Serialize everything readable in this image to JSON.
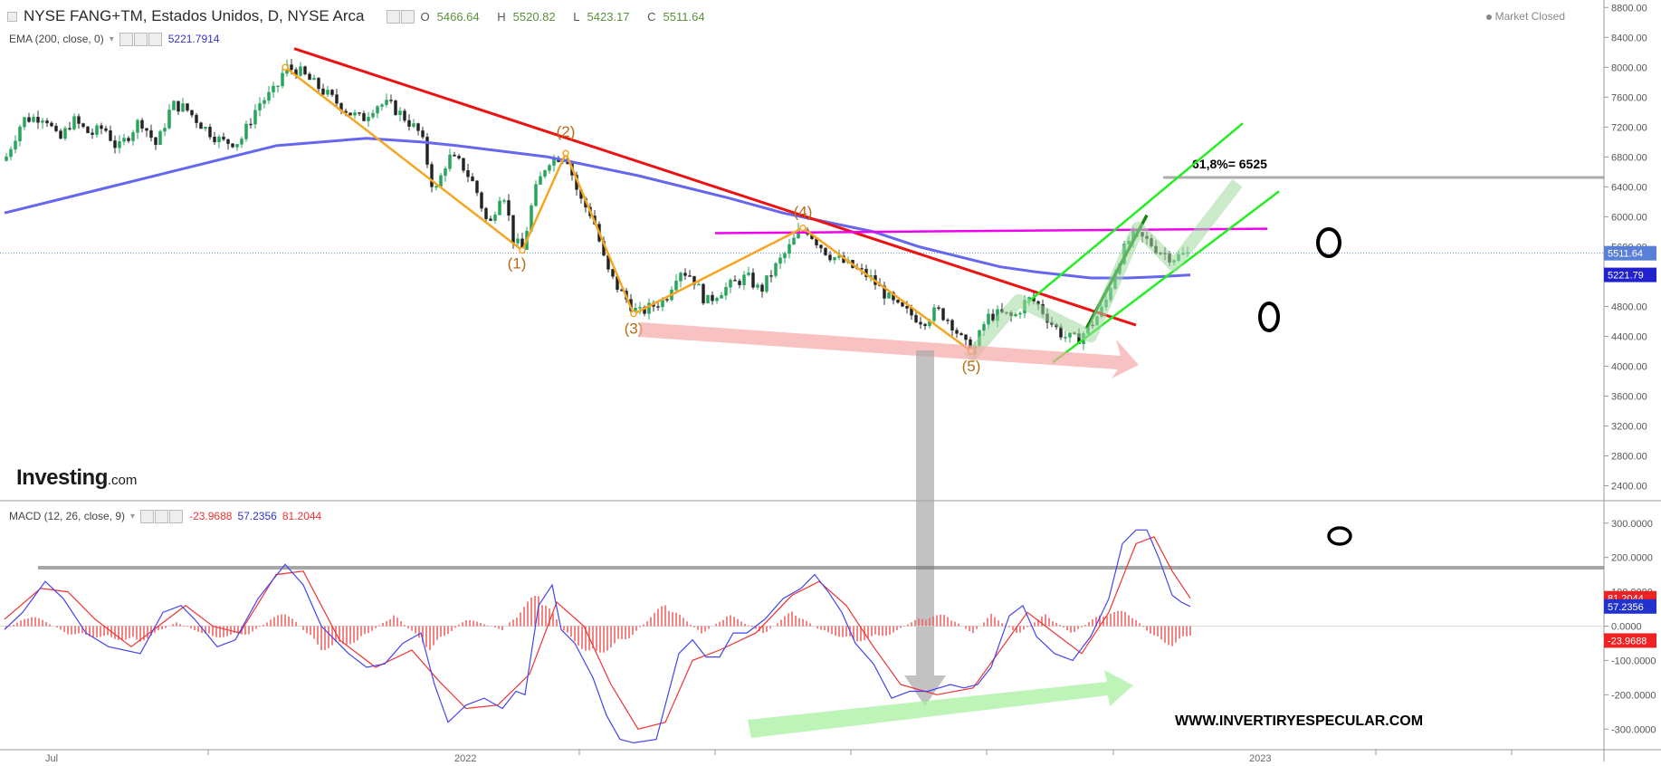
{
  "header": {
    "title": "NYSE FANG+TM, Estados Unidos, D, NYSE Arca",
    "ohlc": [
      {
        "label": "O",
        "value": "5466.64"
      },
      {
        "label": "H",
        "value": "5520.82"
      },
      {
        "label": "L",
        "value": "5423.17"
      },
      {
        "label": "C",
        "value": "5511.64"
      }
    ],
    "market_status": "Market Closed",
    "ema_label": "EMA (200, close, 0)",
    "ema_value": "5221.7914",
    "macd_label": "MACD (12, 26, close, 9)",
    "macd_values": [
      "-23.9688",
      "57.2356",
      "81.2044"
    ]
  },
  "brand": {
    "name": "Investing",
    "suffix": ".com"
  },
  "website": "WWW.INVERTIRYESPECULAR.COM",
  "colors": {
    "up": "#26a65b",
    "down": "#333333",
    "ema": "#6666ee",
    "trend": "#ee1111",
    "wave": "#f5a623",
    "magenta": "#ee00ee",
    "channel": "#22ee22",
    "macd": "#4444ee",
    "signal": "#ee3333",
    "hist": "#ee6666",
    "level": "#777777"
  },
  "chart_data": [
    {
      "type": "candlestick",
      "title": "NYSE FANG+TM, Estados Unidos, D, NYSE Arca",
      "ylim": [
        2200,
        8900
      ],
      "yticks": [
        "8800.00",
        "8400.00",
        "8000.00",
        "7600.00",
        "7200.00",
        "6800.00",
        "6400.00",
        "6000.00",
        "5600.00",
        "5200.00",
        "4800.00",
        "4400.00",
        "4000.00",
        "3600.00",
        "3200.00",
        "2800.00",
        "2400.00"
      ],
      "xticks": [
        "Jul",
        "2022",
        "2023"
      ],
      "last_price_label": "5511.64",
      "last_price": 5511.64,
      "ema_label": "5221.79",
      "ema_last": 5221.79,
      "price_path": [
        [
          0,
          6750
        ],
        [
          20,
          7300
        ],
        [
          45,
          7350
        ],
        [
          60,
          7000
        ],
        [
          75,
          7300
        ],
        [
          95,
          7100
        ],
        [
          110,
          7200
        ],
        [
          125,
          6900
        ],
        [
          150,
          7300
        ],
        [
          168,
          6950
        ],
        [
          185,
          7500
        ],
        [
          200,
          7450
        ],
        [
          220,
          7200
        ],
        [
          240,
          7000
        ],
        [
          260,
          7000
        ],
        [
          280,
          7500
        ],
        [
          300,
          7700
        ],
        [
          310,
          8000
        ],
        [
          325,
          7950
        ],
        [
          340,
          7800
        ],
        [
          360,
          7600
        ],
        [
          380,
          7400
        ],
        [
          395,
          7300
        ],
        [
          410,
          7500
        ],
        [
          425,
          7500
        ],
        [
          440,
          7350
        ],
        [
          460,
          7100
        ],
        [
          475,
          6300
        ],
        [
          490,
          6800
        ],
        [
          505,
          6700
        ],
        [
          520,
          6400
        ],
        [
          535,
          5850
        ],
        [
          550,
          6400
        ],
        [
          562,
          5700
        ],
        [
          572,
          5550
        ],
        [
          585,
          6300
        ],
        [
          600,
          6750
        ],
        [
          612,
          6800
        ],
        [
          620,
          6850
        ],
        [
          635,
          6250
        ],
        [
          650,
          6000
        ],
        [
          665,
          5300
        ],
        [
          680,
          5000
        ],
        [
          690,
          4850
        ],
        [
          700,
          4700
        ],
        [
          715,
          4800
        ],
        [
          730,
          4900
        ],
        [
          745,
          5300
        ],
        [
          760,
          5200
        ],
        [
          775,
          4850
        ],
        [
          790,
          5000
        ],
        [
          805,
          5100
        ],
        [
          820,
          5200
        ],
        [
          835,
          5000
        ],
        [
          850,
          5300
        ],
        [
          865,
          5550
        ],
        [
          878,
          5800
        ],
        [
          885,
          5850
        ],
        [
          895,
          5700
        ],
        [
          910,
          5500
        ],
        [
          925,
          5400
        ],
        [
          940,
          5300
        ],
        [
          955,
          5200
        ],
        [
          970,
          5000
        ],
        [
          985,
          4800
        ],
        [
          1000,
          4700
        ],
        [
          1015,
          4600
        ],
        [
          1030,
          4750
        ],
        [
          1045,
          4600
        ],
        [
          1060,
          4300
        ],
        [
          1070,
          4200
        ],
        [
          1085,
          4650
        ],
        [
          1100,
          4700
        ],
        [
          1115,
          4650
        ],
        [
          1130,
          4900
        ],
        [
          1140,
          4850
        ],
        [
          1155,
          4600
        ],
        [
          1170,
          4400
        ],
        [
          1185,
          4350
        ],
        [
          1200,
          4550
        ],
        [
          1215,
          4800
        ],
        [
          1230,
          5400
        ],
        [
          1245,
          5750
        ],
        [
          1260,
          5700
        ],
        [
          1275,
          5550
        ],
        [
          1290,
          5450
        ],
        [
          1300,
          5480
        ],
        [
          1310,
          5511.64
        ]
      ],
      "ema_path": [
        [
          0,
          6050
        ],
        [
          100,
          6350
        ],
        [
          200,
          6650
        ],
        [
          300,
          6950
        ],
        [
          400,
          7050
        ],
        [
          460,
          7000
        ],
        [
          500,
          6950
        ],
        [
          600,
          6800
        ],
        [
          700,
          6550
        ],
        [
          800,
          6250
        ],
        [
          860,
          6050
        ],
        [
          900,
          5950
        ],
        [
          960,
          5800
        ],
        [
          1010,
          5600
        ],
        [
          1060,
          5450
        ],
        [
          1100,
          5330
        ],
        [
          1140,
          5260
        ],
        [
          1200,
          5180
        ],
        [
          1240,
          5180
        ],
        [
          1280,
          5200
        ],
        [
          1310,
          5221.79
        ]
      ],
      "wave_labels": [
        "(1)",
        "(2)",
        "(3)",
        "(4)",
        "(5)"
      ],
      "wave_points": [
        [
          310,
          8000
        ],
        [
          572,
          5550
        ],
        [
          620,
          6850
        ],
        [
          695,
          4700
        ],
        [
          882,
          5850
        ],
        [
          1068,
          4200
        ]
      ],
      "annotations": {
        "fib_label": "61,8%= 6525",
        "fib_level": 6525
      }
    },
    {
      "type": "line",
      "title": "MACD (12, 26, close, 9)",
      "ylim": [
        -360,
        360
      ],
      "yticks": [
        "300.0000",
        "200.0000",
        "100.0000",
        "0.0000",
        "-100.0000",
        "-200.0000",
        "-300.0000"
      ],
      "series": [
        {
          "name": "MACD",
          "last": 57.2356,
          "label": "57.2356"
        },
        {
          "name": "Signal",
          "last": 81.2044,
          "label": "81.2044"
        },
        {
          "name": "Histogram",
          "last": -23.9688,
          "label": "-23.9688"
        }
      ],
      "macd_path": [
        [
          0,
          -10
        ],
        [
          20,
          40
        ],
        [
          45,
          130
        ],
        [
          65,
          80
        ],
        [
          90,
          -20
        ],
        [
          115,
          -60
        ],
        [
          150,
          -80
        ],
        [
          175,
          40
        ],
        [
          195,
          60
        ],
        [
          210,
          20
        ],
        [
          235,
          -60
        ],
        [
          255,
          -40
        ],
        [
          280,
          80
        ],
        [
          310,
          180
        ],
        [
          330,
          120
        ],
        [
          350,
          0
        ],
        [
          380,
          -80
        ],
        [
          400,
          -120
        ],
        [
          420,
          -110
        ],
        [
          440,
          -50
        ],
        [
          460,
          -20
        ],
        [
          475,
          -170
        ],
        [
          490,
          -280
        ],
        [
          510,
          -230
        ],
        [
          530,
          -210
        ],
        [
          550,
          -240
        ],
        [
          565,
          -190
        ],
        [
          575,
          -200
        ],
        [
          590,
          60
        ],
        [
          605,
          120
        ],
        [
          615,
          -10
        ],
        [
          630,
          -50
        ],
        [
          650,
          -150
        ],
        [
          665,
          -260
        ],
        [
          680,
          -330
        ],
        [
          695,
          -340
        ],
        [
          720,
          -330
        ],
        [
          745,
          -80
        ],
        [
          760,
          -40
        ],
        [
          775,
          -90
        ],
        [
          790,
          -90
        ],
        [
          805,
          -20
        ],
        [
          820,
          -20
        ],
        [
          840,
          20
        ],
        [
          860,
          80
        ],
        [
          880,
          110
        ],
        [
          895,
          150
        ],
        [
          910,
          100
        ],
        [
          925,
          40
        ],
        [
          940,
          -50
        ],
        [
          960,
          -110
        ],
        [
          980,
          -210
        ],
        [
          1000,
          -190
        ],
        [
          1020,
          -190
        ],
        [
          1045,
          -170
        ],
        [
          1060,
          -180
        ],
        [
          1075,
          -170
        ],
        [
          1090,
          -120
        ],
        [
          1110,
          30
        ],
        [
          1125,
          60
        ],
        [
          1140,
          -30
        ],
        [
          1160,
          -80
        ],
        [
          1180,
          -100
        ],
        [
          1200,
          -30
        ],
        [
          1220,
          80
        ],
        [
          1235,
          240
        ],
        [
          1250,
          280
        ],
        [
          1262,
          280
        ],
        [
          1275,
          200
        ],
        [
          1290,
          90
        ],
        [
          1300,
          70
        ],
        [
          1310,
          57.2356
        ]
      ],
      "signal_path": [
        [
          0,
          20
        ],
        [
          40,
          110
        ],
        [
          70,
          100
        ],
        [
          100,
          20
        ],
        [
          140,
          -60
        ],
        [
          170,
          0
        ],
        [
          200,
          60
        ],
        [
          230,
          0
        ],
        [
          260,
          -20
        ],
        [
          300,
          150
        ],
        [
          330,
          160
        ],
        [
          370,
          -40
        ],
        [
          410,
          -120
        ],
        [
          450,
          -70
        ],
        [
          480,
          -160
        ],
        [
          510,
          -240
        ],
        [
          545,
          -230
        ],
        [
          580,
          -140
        ],
        [
          610,
          70
        ],
        [
          640,
          0
        ],
        [
          670,
          -170
        ],
        [
          700,
          -300
        ],
        [
          730,
          -280
        ],
        [
          760,
          -100
        ],
        [
          790,
          -70
        ],
        [
          830,
          -20
        ],
        [
          870,
          90
        ],
        [
          900,
          130
        ],
        [
          930,
          60
        ],
        [
          960,
          -60
        ],
        [
          990,
          -170
        ],
        [
          1030,
          -200
        ],
        [
          1070,
          -180
        ],
        [
          1100,
          -70
        ],
        [
          1130,
          40
        ],
        [
          1160,
          -20
        ],
        [
          1190,
          -80
        ],
        [
          1220,
          40
        ],
        [
          1250,
          240
        ],
        [
          1270,
          260
        ],
        [
          1290,
          160
        ],
        [
          1310,
          81.2044
        ]
      ],
      "hist_segments": [
        [
          0,
          -10
        ],
        [
          30,
          30
        ],
        [
          70,
          -20
        ],
        [
          110,
          -30
        ],
        [
          150,
          -40
        ],
        [
          190,
          10
        ],
        [
          230,
          -30
        ],
        [
          270,
          -20
        ],
        [
          310,
          40
        ],
        [
          350,
          -60
        ],
        [
          390,
          -40
        ],
        [
          430,
          30
        ],
        [
          470,
          -60
        ],
        [
          510,
          20
        ],
        [
          550,
          -10
        ],
        [
          590,
          90
        ],
        [
          620,
          -20
        ],
        [
          650,
          -80
        ],
        [
          690,
          -30
        ],
        [
          730,
          60
        ],
        [
          770,
          -20
        ],
        [
          800,
          30
        ],
        [
          840,
          -20
        ],
        [
          870,
          40
        ],
        [
          900,
          -10
        ],
        [
          940,
          -40
        ],
        [
          980,
          -20
        ],
        [
          1010,
          20
        ],
        [
          1040,
          30
        ],
        [
          1070,
          -20
        ],
        [
          1090,
          30
        ],
        [
          1120,
          -20
        ],
        [
          1150,
          30
        ],
        [
          1180,
          -20
        ],
        [
          1210,
          30
        ],
        [
          1240,
          40
        ],
        [
          1270,
          -30
        ],
        [
          1290,
          -50
        ],
        [
          1310,
          -24
        ]
      ],
      "level_line": 170
    }
  ]
}
